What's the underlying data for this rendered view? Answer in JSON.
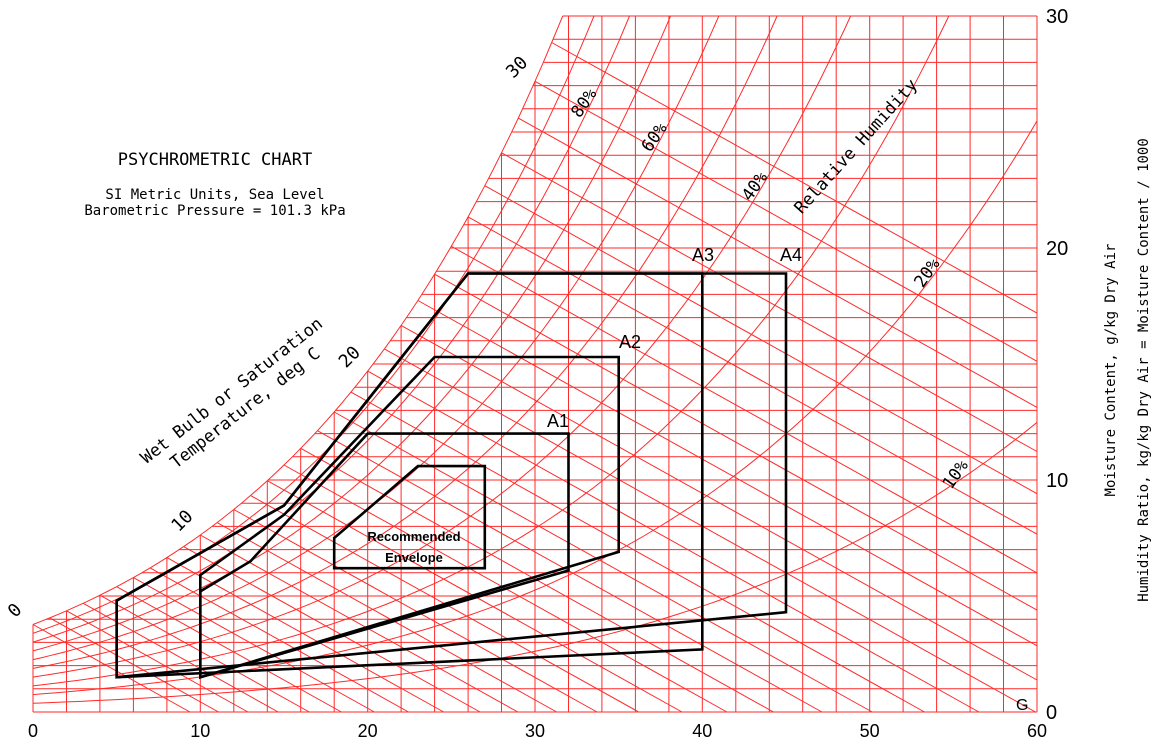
{
  "chart_data": {
    "type": "line",
    "title": "PSYCHROMETRIC CHART",
    "subtitle_line1": "SI Metric Units, Sea Level",
    "subtitle_line2": "Barometric Pressure = 101.3 kPa",
    "xlabel": "",
    "ylabel_right_line1": "Moisture Content, g/kg Dry Air",
    "ylabel_right_line2": "Humidity Ratio, kg/kg Dry Air = Moisture Content / 1000",
    "wetbulb_label_line1": "Wet Bulb or Saturation",
    "wetbulb_label_line2": "Temperature, deg C",
    "rh_label": "Relative Humidity",
    "xlim": [
      0,
      60
    ],
    "ylim": [
      0,
      30
    ],
    "x_ticks": [
      "0",
      "10",
      "20",
      "30",
      "40",
      "50",
      "60"
    ],
    "y_ticks": [
      "0",
      "10",
      "20",
      "30"
    ],
    "wetbulb_ticks": [
      "0",
      "10",
      "20",
      "30"
    ],
    "rh_curve_labels": [
      "80%",
      "60%",
      "40%",
      "20%",
      "10%"
    ],
    "extra_mark": "G",
    "envelopes": [
      {
        "name": "Recommended Envelope",
        "label_line1": "Recommended",
        "label_line2": "Envelope",
        "points": [
          [
            18,
            6.2
          ],
          [
            27,
            6.2
          ],
          [
            27,
            10.6
          ],
          [
            23,
            10.6
          ],
          [
            18,
            7.5
          ]
        ]
      },
      {
        "name": "A1",
        "label": "A1",
        "points": [
          [
            10,
            1.5
          ],
          [
            32,
            6.1
          ],
          [
            32,
            12.0
          ],
          [
            20,
            12.0
          ],
          [
            13,
            6.5
          ],
          [
            10,
            5.2
          ]
        ]
      },
      {
        "name": "A2",
        "label": "A2",
        "points": [
          [
            10,
            1.5
          ],
          [
            35,
            6.9
          ],
          [
            35,
            15.3
          ],
          [
            24,
            15.3
          ],
          [
            15,
            8.5
          ],
          [
            10,
            5.9
          ]
        ]
      },
      {
        "name": "A3",
        "label": "A3",
        "points": [
          [
            5,
            1.5
          ],
          [
            40,
            2.7
          ],
          [
            40,
            18.9
          ],
          [
            26,
            18.9
          ],
          [
            15,
            8.9
          ],
          [
            5,
            4.8
          ]
        ]
      },
      {
        "name": "A4",
        "label": "A4",
        "points": [
          [
            5,
            1.5
          ],
          [
            45,
            4.3
          ],
          [
            45,
            18.9
          ],
          [
            26,
            18.9
          ],
          [
            15,
            8.9
          ],
          [
            5,
            4.8
          ]
        ]
      }
    ]
  }
}
